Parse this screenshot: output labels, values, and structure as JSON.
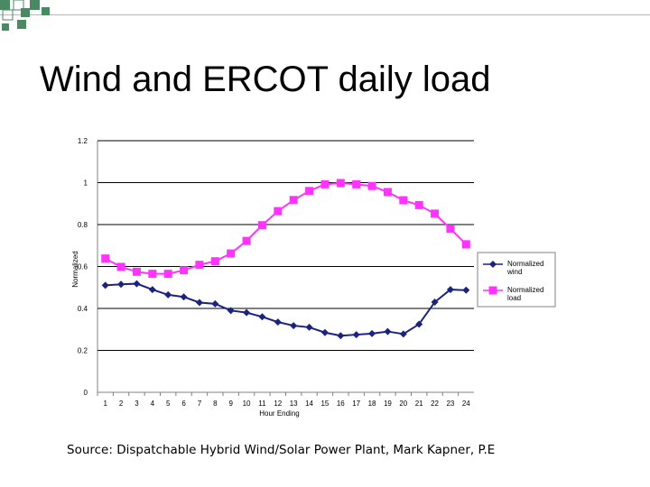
{
  "slide": {
    "title": "Wind and ERCOT daily load",
    "source": "Source: Dispatchable Hybrid Wind/Solar Power Plant, Mark Kapner, P.E"
  },
  "decoration": {
    "squares_color": "#4a8a63",
    "line_color": "#b7b7b7"
  },
  "chart_data": {
    "type": "line",
    "title": "",
    "xlabel": "Hour Ending",
    "ylabel": "Normalized",
    "categories": [
      "1",
      "2",
      "3",
      "4",
      "5",
      "6",
      "7",
      "8",
      "9",
      "10",
      "11",
      "12",
      "13",
      "14",
      "15",
      "16",
      "17",
      "18",
      "19",
      "20",
      "21",
      "22",
      "23",
      "24"
    ],
    "ylim": [
      0,
      1.2
    ],
    "yticks": [
      "0",
      "0.2",
      "0.4",
      "0.6",
      "0.8",
      "1",
      "1.2"
    ],
    "grid": "horizontal",
    "legend_position": "right",
    "series": [
      {
        "name": "Normalized wind",
        "color": "#1a237e",
        "marker": "diamond",
        "values": [
          0.51,
          0.515,
          0.518,
          0.49,
          0.465,
          0.455,
          0.428,
          0.422,
          0.39,
          0.38,
          0.36,
          0.335,
          0.318,
          0.31,
          0.285,
          0.27,
          0.275,
          0.28,
          0.29,
          0.278,
          0.325,
          0.43,
          0.49,
          0.487
        ]
      },
      {
        "name": "Normalized load",
        "color": "#ff33ff",
        "marker": "square",
        "values": [
          0.638,
          0.598,
          0.575,
          0.565,
          0.565,
          0.582,
          0.608,
          0.625,
          0.662,
          0.722,
          0.797,
          0.864,
          0.917,
          0.96,
          0.992,
          0.998,
          0.992,
          0.984,
          0.955,
          0.916,
          0.893,
          0.852,
          0.78,
          0.706
        ]
      }
    ],
    "legend_labels": [
      [
        "Normalized",
        "wind"
      ],
      [
        "Normalized",
        "load"
      ]
    ]
  }
}
